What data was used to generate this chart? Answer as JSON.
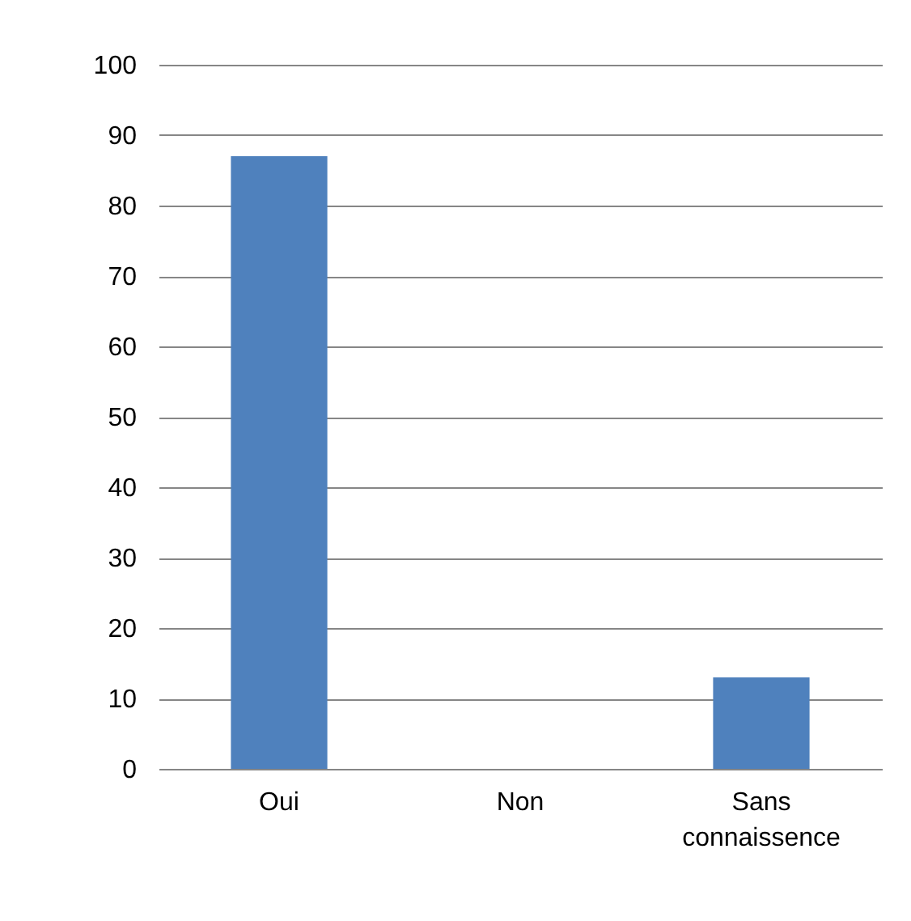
{
  "chart_data": {
    "type": "bar",
    "categories": [
      "Oui",
      "Non",
      "Sans connaissence"
    ],
    "values": [
      87,
      0,
      13
    ],
    "color": "#4f81bd",
    "ylim": [
      0,
      100
    ],
    "yticks": [
      0,
      10,
      20,
      30,
      40,
      50,
      60,
      70,
      80,
      90,
      100
    ],
    "grid": "y"
  }
}
